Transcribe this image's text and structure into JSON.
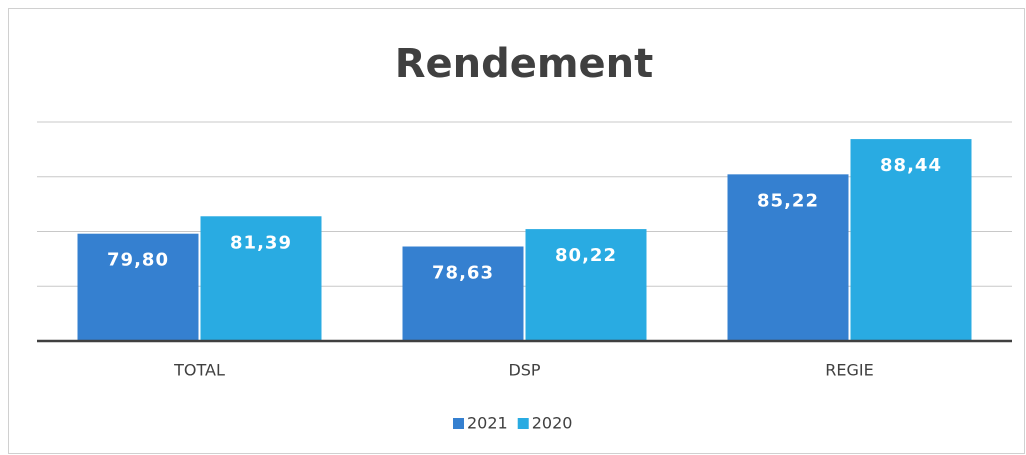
{
  "chart_data": {
    "type": "bar",
    "title": "Rendement",
    "categories": [
      "TOTAL",
      "DSP",
      "REGIE"
    ],
    "series": [
      {
        "name": "2021",
        "color": "#3580d0",
        "values": [
          79.8,
          78.63,
          85.22
        ],
        "value_labels": [
          "79,80",
          "78,63",
          "85,22"
        ]
      },
      {
        "name": "2020",
        "color": "#29abe2",
        "values": [
          81.39,
          80.22,
          88.44
        ],
        "value_labels": [
          "81,39",
          "80,22",
          "88,44"
        ]
      }
    ],
    "ylim": [
      70,
      90
    ],
    "yticks": [
      70,
      75,
      80,
      85,
      90
    ],
    "grid": true,
    "legend": "bottom"
  }
}
